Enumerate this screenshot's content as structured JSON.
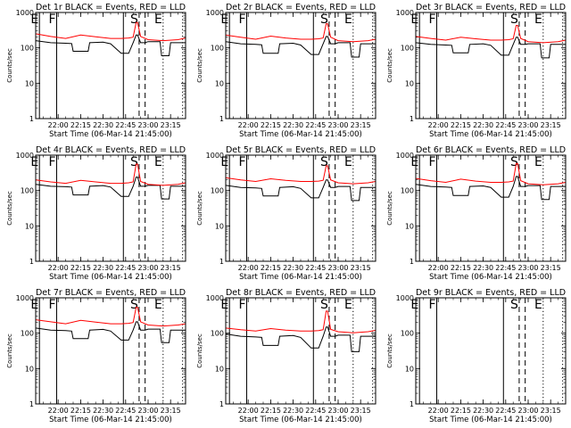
{
  "chart_data": {
    "type": "line",
    "layout": "3x3 grid",
    "y_scale": "log",
    "ylim": [
      1,
      1000
    ],
    "y_tick_labels": [
      "1",
      "10",
      "100",
      "1000"
    ],
    "x_tick_labels": [
      "22:00",
      "22:15",
      "22:30",
      "22:45",
      "23:00",
      "23:15"
    ],
    "x_tick_times": [
      "22:00",
      "22:15",
      "22:30",
      "22:45",
      "23:00",
      "23:15"
    ],
    "x_range": [
      "21:45:00",
      "23:25:00"
    ],
    "ylabel": "Counts/sec",
    "xlabel": "Start Time (06-Mar-14 21:45:00)",
    "line_colors": {
      "events": "#000000",
      "lld": "#ff0000"
    },
    "markers": [
      {
        "label": "E",
        "time": "21:47:30",
        "style": "solid"
      },
      {
        "label": "F",
        "time": "21:59:00",
        "style": "solid"
      },
      {
        "label": "",
        "time": "22:43:30",
        "style": "solid"
      },
      {
        "label": "S",
        "time": "22:54:00",
        "style": "dashed"
      },
      {
        "label": "",
        "time": "22:58:00",
        "style": "dashed"
      },
      {
        "label": "E",
        "time": "23:10:00",
        "style": "dotted"
      },
      {
        "label": "",
        "time": "23:23:00",
        "style": "dotted"
      }
    ],
    "panels": [
      {
        "title": "Det 1r BLACK = Events, RED = LLD",
        "series": [
          {
            "name": "Events",
            "color": "#000000",
            "x": [
              "21:45",
              "21:55",
              "22:05",
              "22:09",
              "22:10",
              "22:20",
              "22:21",
              "22:30",
              "22:35",
              "22:42",
              "22:47",
              "22:50",
              "22:52",
              "22:53",
              "22:55",
              "22:58",
              "23:00",
              "23:05",
              "23:08",
              "23:09",
              "23:14",
              "23:15",
              "23:20",
              "23:25"
            ],
            "y": [
              160,
              140,
              135,
              132,
              80,
              80,
              140,
              145,
              130,
              70,
              70,
              140,
              230,
              230,
              140,
              140,
              150,
              150,
              150,
              60,
              60,
              140,
              140,
              140
            ]
          },
          {
            "name": "LLD",
            "color": "#ff0000",
            "x": [
              "21:45",
              "21:55",
              "22:05",
              "22:15",
              "22:25",
              "22:35",
              "22:42",
              "22:47",
              "22:50",
              "22:52",
              "22:53",
              "22:55",
              "23:00",
              "23:10",
              "23:20",
              "23:25"
            ],
            "y": [
              250,
              210,
              185,
              230,
              205,
              185,
              185,
              190,
              200,
              520,
              520,
              210,
              170,
              160,
              170,
              190
            ]
          }
        ]
      },
      {
        "title": "Det 2r BLACK = Events, RED = LLD",
        "series": [
          {
            "name": "Events",
            "color": "#000000",
            "x": [
              "21:45",
              "21:55",
              "22:05",
              "22:09",
              "22:10",
              "22:20",
              "22:21",
              "22:30",
              "22:35",
              "22:42",
              "22:47",
              "22:50",
              "22:52",
              "22:53",
              "22:55",
              "22:58",
              "23:00",
              "23:05",
              "23:08",
              "23:09",
              "23:14",
              "23:15",
              "23:20",
              "23:25"
            ],
            "y": [
              150,
              130,
              125,
              122,
              70,
              70,
              130,
              135,
              120,
              65,
              65,
              130,
              210,
              210,
              130,
              130,
              140,
              140,
              140,
              55,
              55,
              130,
              130,
              130
            ]
          },
          {
            "name": "LLD",
            "color": "#ff0000",
            "x": [
              "21:45",
              "21:55",
              "22:05",
              "22:15",
              "22:25",
              "22:35",
              "22:42",
              "22:47",
              "22:50",
              "22:52",
              "22:53",
              "22:55",
              "23:00",
              "23:10",
              "23:20",
              "23:25"
            ],
            "y": [
              230,
              200,
              175,
              215,
              190,
              175,
              175,
              180,
              190,
              480,
              480,
              200,
              160,
              150,
              160,
              175
            ]
          }
        ]
      },
      {
        "title": "Det 3r BLACK = Events, RED = LLD",
        "series": [
          {
            "name": "Events",
            "color": "#000000",
            "x": [
              "21:45",
              "21:55",
              "22:05",
              "22:09",
              "22:10",
              "22:20",
              "22:21",
              "22:30",
              "22:35",
              "22:42",
              "22:47",
              "22:50",
              "22:52",
              "22:53",
              "22:55",
              "22:58",
              "23:00",
              "23:05",
              "23:08",
              "23:09",
              "23:14",
              "23:15",
              "23:20",
              "23:25"
            ],
            "y": [
              140,
              125,
              120,
              118,
              72,
              72,
              125,
              130,
              118,
              62,
              62,
              125,
              200,
              200,
              125,
              125,
              130,
              130,
              130,
              52,
              52,
              125,
              125,
              125
            ]
          },
          {
            "name": "LLD",
            "color": "#ff0000",
            "x": [
              "21:45",
              "21:55",
              "22:05",
              "22:15",
              "22:25",
              "22:35",
              "22:42",
              "22:47",
              "22:50",
              "22:52",
              "22:53",
              "22:55",
              "23:00",
              "23:10",
              "23:20",
              "23:25"
            ],
            "y": [
              210,
              185,
              165,
              200,
              180,
              165,
              165,
              170,
              180,
              430,
              430,
              185,
              150,
              140,
              150,
              165
            ]
          }
        ]
      },
      {
        "title": "Det 4r BLACK = Events, RED = LLD",
        "series": [
          {
            "name": "Events",
            "color": "#000000",
            "x": [
              "21:45",
              "21:55",
              "22:05",
              "22:09",
              "22:10",
              "22:20",
              "22:21",
              "22:30",
              "22:35",
              "22:42",
              "22:47",
              "22:50",
              "22:52",
              "22:53",
              "22:55",
              "22:58",
              "23:00",
              "23:05",
              "23:08",
              "23:09",
              "23:14",
              "23:15",
              "23:20",
              "23:25"
            ],
            "y": [
              150,
              132,
              128,
              125,
              75,
              75,
              132,
              138,
              125,
              68,
              68,
              132,
              240,
              240,
              132,
              132,
              140,
              140,
              140,
              58,
              58,
              132,
              132,
              132
            ]
          },
          {
            "name": "LLD",
            "color": "#ff0000",
            "x": [
              "21:45",
              "21:55",
              "22:05",
              "22:15",
              "22:25",
              "22:35",
              "22:42",
              "22:47",
              "22:50",
              "22:52",
              "22:53",
              "22:55",
              "23:00",
              "23:10",
              "23:20",
              "23:25"
            ],
            "y": [
              200,
              175,
              160,
              195,
              175,
              160,
              160,
              165,
              175,
              560,
              560,
              180,
              150,
              140,
              150,
              165
            ]
          }
        ]
      },
      {
        "title": "Det 5r BLACK = Events, RED = LLD",
        "series": [
          {
            "name": "Events",
            "color": "#000000",
            "x": [
              "21:45",
              "21:55",
              "22:05",
              "22:09",
              "22:10",
              "22:20",
              "22:21",
              "22:30",
              "22:35",
              "22:42",
              "22:47",
              "22:50",
              "22:52",
              "22:53",
              "22:55",
              "22:58",
              "23:00",
              "23:05",
              "23:08",
              "23:09",
              "23:14",
              "23:15",
              "23:20",
              "23:25"
            ],
            "y": [
              140,
              122,
              118,
              115,
              70,
              70,
              122,
              128,
              115,
              62,
              62,
              122,
              200,
              200,
              122,
              122,
              130,
              130,
              130,
              52,
              52,
              122,
              122,
              122
            ]
          },
          {
            "name": "LLD",
            "color": "#ff0000",
            "x": [
              "21:45",
              "21:55",
              "22:05",
              "22:15",
              "22:25",
              "22:35",
              "22:42",
              "22:47",
              "22:50",
              "22:52",
              "22:53",
              "22:55",
              "23:00",
              "23:10",
              "23:20",
              "23:25"
            ],
            "y": [
              230,
              200,
              180,
              215,
              195,
              180,
              180,
              185,
              195,
              500,
              500,
              200,
              165,
              155,
              165,
              180
            ]
          }
        ]
      },
      {
        "title": "Det 6r BLACK = Events, RED = LLD",
        "series": [
          {
            "name": "Events",
            "color": "#000000",
            "x": [
              "21:45",
              "21:55",
              "22:05",
              "22:09",
              "22:10",
              "22:20",
              "22:21",
              "22:30",
              "22:35",
              "22:42",
              "22:47",
              "22:50",
              "22:52",
              "22:53",
              "22:55",
              "22:58",
              "23:00",
              "23:05",
              "23:08",
              "23:09",
              "23:14",
              "23:15",
              "23:20",
              "23:25"
            ],
            "y": [
              150,
              130,
              126,
              122,
              72,
              72,
              130,
              135,
              122,
              65,
              65,
              130,
              250,
              250,
              130,
              130,
              138,
              138,
              138,
              56,
              56,
              130,
              130,
              130
            ]
          },
          {
            "name": "LLD",
            "color": "#ff0000",
            "x": [
              "21:45",
              "21:55",
              "22:05",
              "22:15",
              "22:25",
              "22:35",
              "22:42",
              "22:47",
              "22:50",
              "22:52",
              "22:53",
              "22:55",
              "23:00",
              "23:10",
              "23:20",
              "23:25"
            ],
            "y": [
              220,
              190,
              170,
              210,
              185,
              170,
              170,
              175,
              185,
              580,
              580,
              190,
              155,
              145,
              155,
              170
            ]
          }
        ]
      },
      {
        "title": "Det 7r BLACK = Events, RED = LLD",
        "series": [
          {
            "name": "Events",
            "color": "#000000",
            "x": [
              "21:45",
              "21:55",
              "22:05",
              "22:09",
              "22:10",
              "22:20",
              "22:21",
              "22:30",
              "22:35",
              "22:42",
              "22:47",
              "22:50",
              "22:52",
              "22:53",
              "22:55",
              "22:58",
              "23:00",
              "23:05",
              "23:08",
              "23:09",
              "23:14",
              "23:15",
              "23:20",
              "23:25"
            ],
            "y": [
              140,
              122,
              118,
              115,
              70,
              70,
              122,
              128,
              115,
              64,
              64,
              122,
              210,
              210,
              122,
              122,
              130,
              130,
              130,
              54,
              54,
              122,
              122,
              122
            ]
          },
          {
            "name": "LLD",
            "color": "#ff0000",
            "x": [
              "21:45",
              "21:55",
              "22:05",
              "22:15",
              "22:25",
              "22:35",
              "22:42",
              "22:47",
              "22:50",
              "22:52",
              "22:53",
              "22:55",
              "23:00",
              "23:10",
              "23:20",
              "23:25"
            ],
            "y": [
              240,
              210,
              185,
              230,
              205,
              185,
              185,
              190,
              200,
              540,
              540,
              210,
              170,
              160,
              170,
              185
            ]
          }
        ]
      },
      {
        "title": "Det 8r BLACK = Events, RED = LLD",
        "series": [
          {
            "name": "Events",
            "color": "#000000",
            "x": [
              "21:45",
              "21:55",
              "22:05",
              "22:09",
              "22:10",
              "22:20",
              "22:21",
              "22:30",
              "22:35",
              "22:42",
              "22:47",
              "22:50",
              "22:52",
              "22:53",
              "22:55",
              "22:58",
              "23:00",
              "23:05",
              "23:08",
              "23:09",
              "23:14",
              "23:15",
              "23:20",
              "23:25"
            ],
            "y": [
              95,
              82,
              78,
              76,
              45,
              45,
              82,
              86,
              76,
              38,
              38,
              82,
              150,
              150,
              82,
              82,
              88,
              88,
              88,
              30,
              30,
              82,
              82,
              82
            ]
          },
          {
            "name": "LLD",
            "color": "#ff0000",
            "x": [
              "21:45",
              "21:55",
              "22:05",
              "22:15",
              "22:25",
              "22:35",
              "22:42",
              "22:47",
              "22:50",
              "22:52",
              "22:53",
              "22:55",
              "23:00",
              "23:10",
              "23:20",
              "23:25"
            ],
            "y": [
              140,
              125,
              115,
              135,
              122,
              115,
              115,
              118,
              125,
              420,
              420,
              128,
              110,
              102,
              110,
              120
            ]
          }
        ]
      },
      {
        "title": "Det 9r BLACK = Events, RED = LLD",
        "series": []
      }
    ]
  }
}
